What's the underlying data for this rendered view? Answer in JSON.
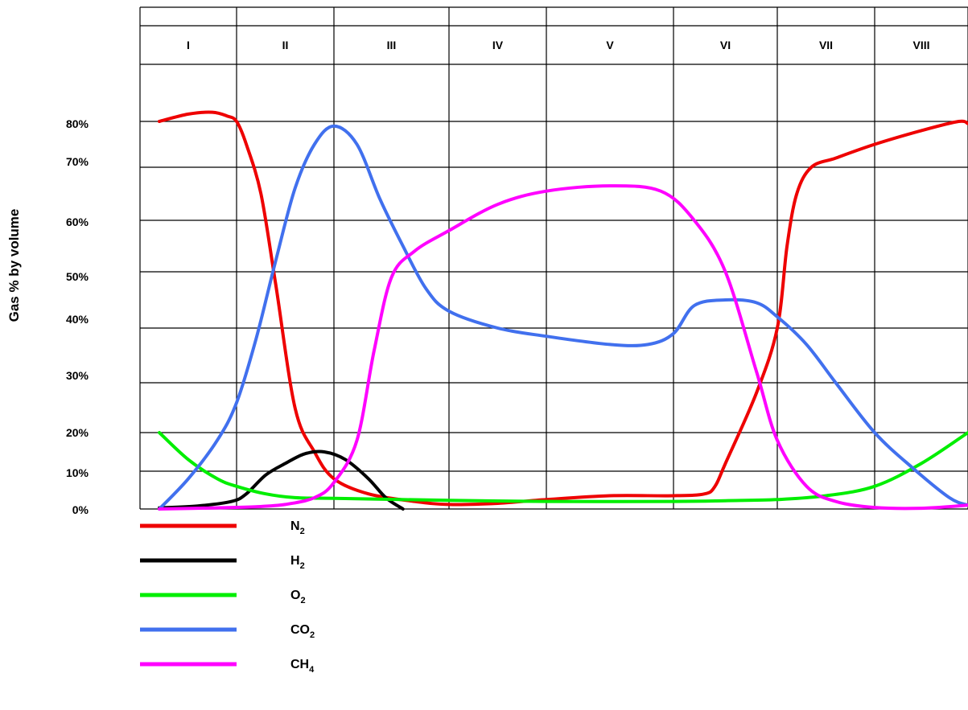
{
  "chart_data": {
    "type": "line",
    "title": "",
    "xlabel": "",
    "ylabel": "Gas % by volume",
    "phases": [
      "I",
      "II",
      "III",
      "IV",
      "V",
      "VI",
      "VII",
      "VIII"
    ],
    "y_ticks": [
      "80%",
      "70%",
      "60%",
      "50%",
      "40%",
      "30%",
      "20%",
      "10%",
      "0%"
    ],
    "x_range": [
      0,
      8
    ],
    "grid": true,
    "legend_placement": "bottom-left",
    "series": [
      {
        "name": "N",
        "sub": "2",
        "color": "#ee0000",
        "points": [
          [
            0.2,
            80
          ],
          [
            0.5,
            82
          ],
          [
            0.75,
            82.5
          ],
          [
            0.9,
            81.5
          ],
          [
            1.0,
            80
          ],
          [
            1.1,
            75
          ],
          [
            1.25,
            65
          ],
          [
            1.4,
            48
          ],
          [
            1.6,
            25
          ],
          [
            1.8,
            15
          ],
          [
            2.0,
            8
          ],
          [
            2.3,
            4
          ],
          [
            2.7,
            2
          ],
          [
            3.0,
            1.2
          ],
          [
            3.5,
            1.5
          ],
          [
            4.0,
            2.5
          ],
          [
            4.5,
            3.5
          ],
          [
            5.0,
            3.5
          ],
          [
            5.3,
            4
          ],
          [
            5.4,
            6
          ],
          [
            5.5,
            12
          ],
          [
            5.8,
            28
          ],
          [
            6.0,
            40
          ],
          [
            6.1,
            55
          ],
          [
            6.2,
            65
          ],
          [
            6.35,
            70
          ],
          [
            6.6,
            72
          ],
          [
            7.0,
            75
          ],
          [
            7.5,
            78
          ],
          [
            7.9,
            80
          ],
          [
            8.0,
            79.5
          ]
        ]
      },
      {
        "name": "H",
        "sub": "2",
        "color": "#000000",
        "points": [
          [
            0.2,
            0.3
          ],
          [
            0.6,
            0.8
          ],
          [
            0.95,
            2
          ],
          [
            1.1,
            4
          ],
          [
            1.3,
            9
          ],
          [
            1.5,
            12
          ],
          [
            1.7,
            14.5
          ],
          [
            1.9,
            15
          ],
          [
            2.1,
            13
          ],
          [
            2.3,
            8
          ],
          [
            2.45,
            3
          ],
          [
            2.6,
            0
          ]
        ]
      },
      {
        "name": "O",
        "sub": "2",
        "color": "#00ee00",
        "points": [
          [
            0.2,
            20
          ],
          [
            0.5,
            13
          ],
          [
            0.8,
            8
          ],
          [
            1.0,
            6
          ],
          [
            1.3,
            4
          ],
          [
            1.6,
            3
          ],
          [
            2.0,
            2.8
          ],
          [
            3.0,
            2.3
          ],
          [
            4.0,
            2
          ],
          [
            5.0,
            2
          ],
          [
            5.5,
            2.2
          ],
          [
            6.0,
            2.5
          ],
          [
            6.5,
            3.5
          ],
          [
            7.0,
            6
          ],
          [
            7.5,
            12
          ],
          [
            8.0,
            20
          ]
        ]
      },
      {
        "name": "CO",
        "sub": "2",
        "color": "#4170ee",
        "points": [
          [
            0.2,
            0
          ],
          [
            0.5,
            8
          ],
          [
            0.8,
            18
          ],
          [
            1.0,
            26
          ],
          [
            1.2,
            38
          ],
          [
            1.4,
            52
          ],
          [
            1.6,
            66
          ],
          [
            1.8,
            75
          ],
          [
            2.0,
            79
          ],
          [
            2.2,
            75
          ],
          [
            2.4,
            64
          ],
          [
            2.6,
            55
          ],
          [
            2.8,
            47
          ],
          [
            3.0,
            43
          ],
          [
            3.5,
            40
          ],
          [
            4.0,
            38.5
          ],
          [
            4.5,
            37
          ],
          [
            4.8,
            37
          ],
          [
            5.0,
            39
          ],
          [
            5.2,
            44
          ],
          [
            5.5,
            45
          ],
          [
            5.8,
            44.5
          ],
          [
            6.0,
            42
          ],
          [
            6.3,
            37
          ],
          [
            6.6,
            30
          ],
          [
            7.0,
            20
          ],
          [
            7.4,
            11
          ],
          [
            7.8,
            3
          ],
          [
            8.0,
            1
          ]
        ]
      },
      {
        "name": "CH",
        "sub": "4",
        "color": "#ff00ff",
        "points": [
          [
            0.2,
            0
          ],
          [
            0.8,
            0.3
          ],
          [
            1.2,
            0.6
          ],
          [
            1.5,
            1.2
          ],
          [
            1.8,
            3
          ],
          [
            2.0,
            7
          ],
          [
            2.2,
            18
          ],
          [
            2.35,
            36
          ],
          [
            2.5,
            49
          ],
          [
            2.7,
            54
          ],
          [
            3.0,
            58
          ],
          [
            3.5,
            63
          ],
          [
            4.0,
            65.5
          ],
          [
            4.5,
            66.5
          ],
          [
            4.9,
            65.5
          ],
          [
            5.2,
            60
          ],
          [
            5.5,
            50
          ],
          [
            5.8,
            32
          ],
          [
            6.0,
            18
          ],
          [
            6.3,
            6
          ],
          [
            6.6,
            2
          ],
          [
            7.0,
            0.4
          ],
          [
            7.5,
            0.2
          ],
          [
            8.0,
            1
          ]
        ]
      }
    ]
  }
}
